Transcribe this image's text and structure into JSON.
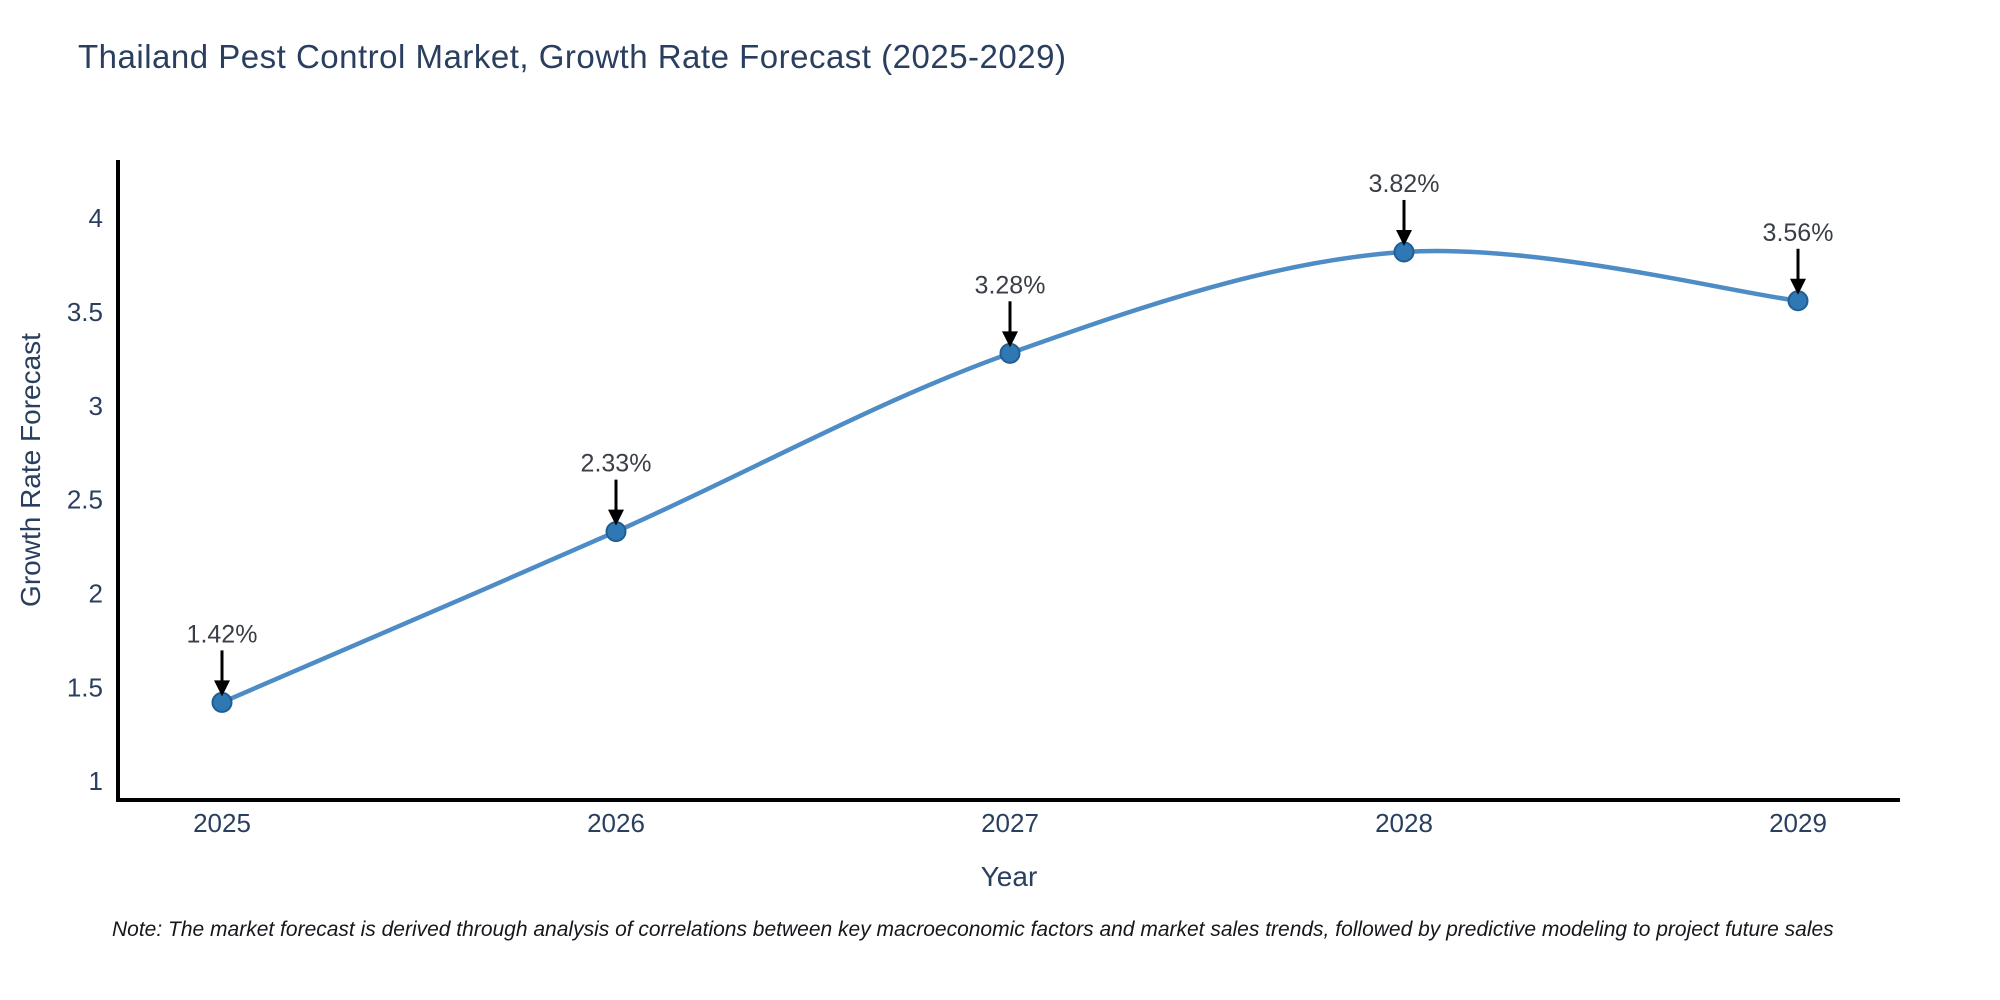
{
  "title": "Thailand Pest Control Market, Growth Rate Forecast (2025-2029)",
  "note": "Note: The market forecast is derived through analysis of correlations between key macroeconomic factors and market sales trends, followed by predictive modeling to project future sales",
  "chart_data": {
    "type": "line",
    "line_shape": "spline",
    "x": [
      "2025",
      "2026",
      "2027",
      "2028",
      "2029"
    ],
    "values": [
      1.42,
      2.33,
      3.28,
      3.82,
      3.56
    ],
    "point_labels": [
      "1.42%",
      "2.33%",
      "3.28%",
      "3.82%",
      "3.56%"
    ],
    "title": "Thailand Pest Control Market, Growth Rate Forecast (2025-2029)",
    "xlabel": "Year",
    "ylabel": "Growth Rate Forecast",
    "yticks": [
      "1",
      "1.5",
      "2",
      "2.5",
      "3",
      "3.5",
      "4"
    ],
    "ytick_values": [
      1,
      1.5,
      2,
      2.5,
      3,
      3.5,
      4
    ],
    "ylim": [
      0.9,
      4.31
    ],
    "grid": false,
    "legend": "none",
    "colors": {
      "line": "#4e8cc6",
      "marker_fill": "#3078b4",
      "marker_edge": "#205e93",
      "axis_line": "#000000",
      "arrow": "#000000",
      "tick_text": "#2a3f5f",
      "title_text": "#2a3f5f",
      "annotation_text": "#3a3f47",
      "background": "#ffffff"
    }
  }
}
